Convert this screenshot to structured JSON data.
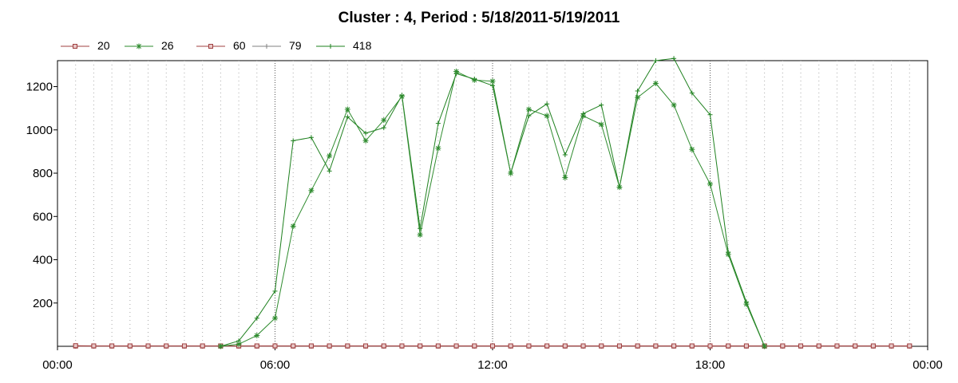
{
  "title": "Cluster : 4, Period : 5/18/2011-5/19/2011",
  "chart_data": {
    "type": "line",
    "title": "Cluster : 4, Period : 5/18/2011-5/19/2011",
    "xlabel": "",
    "ylabel": "",
    "x_range_hours": [
      0,
      24
    ],
    "ylim": [
      0,
      1320
    ],
    "x_tick_labels": [
      "00:00",
      "06:00",
      "12:00",
      "18:00",
      "00:00"
    ],
    "y_ticks": [
      200,
      400,
      600,
      800,
      1000,
      1200
    ],
    "grid": "dotted vertical lines every 30 minutes, bold at each hour",
    "legend_position": "top-left",
    "x_unit": "hours since 5/18/2011 00:00",
    "series": [
      {
        "name": "20",
        "color": "#a04040",
        "marker": "square",
        "x": [
          0.5,
          1,
          1.5,
          2,
          2.5,
          3,
          3.5,
          4,
          4.5,
          5,
          5.5,
          6,
          6.5,
          7,
          7.5,
          8,
          8.5,
          9,
          9.5,
          10,
          10.5,
          11,
          11.5,
          12,
          12.5,
          13,
          13.5,
          14,
          14.5,
          15,
          15.5,
          16,
          16.5,
          17,
          17.5,
          18,
          18.5,
          19,
          19.5,
          20,
          20.5,
          21,
          21.5,
          22,
          22.5,
          23,
          23.5
        ],
        "y": [
          3,
          2,
          2,
          2,
          2,
          2,
          2,
          2,
          2,
          2,
          2,
          2,
          2,
          2,
          2,
          2,
          2,
          2,
          2,
          2,
          2,
          2,
          2,
          2,
          2,
          2,
          2,
          2,
          2,
          2,
          2,
          2,
          2,
          2,
          2,
          2,
          2,
          2,
          2,
          2,
          2,
          2,
          2,
          2,
          2,
          2,
          2
        ]
      },
      {
        "name": "26",
        "color": "#2e8b2e",
        "marker": "asterisk",
        "x": [
          4.5,
          5,
          5.5,
          6,
          6.5,
          7,
          7.5,
          8,
          8.5,
          9,
          9.5,
          10,
          10.5,
          11,
          11.5,
          12,
          12.5,
          13,
          13.5,
          14,
          14.5,
          15,
          15.5,
          16,
          16.5,
          17,
          17.5,
          18,
          18.5,
          19,
          19.5
        ],
        "y": [
          0,
          10,
          50,
          130,
          555,
          720,
          880,
          1095,
          950,
          1045,
          1155,
          515,
          915,
          1270,
          1230,
          1225,
          800,
          1095,
          1065,
          780,
          1065,
          1025,
          735,
          1150,
          1215,
          1115,
          910,
          750,
          425,
          195,
          0
        ]
      },
      {
        "name": "60",
        "color": "#a04040",
        "marker": "square",
        "x": [
          0.5,
          1,
          1.5,
          2,
          2.5,
          3,
          3.5,
          4,
          4.5,
          5,
          5.5,
          6,
          6.5,
          7,
          7.5,
          8,
          8.5,
          9,
          9.5,
          10,
          10.5,
          11,
          11.5,
          12,
          12.5,
          13,
          13.5,
          14,
          14.5,
          15,
          15.5,
          16,
          16.5,
          17,
          17.5,
          18,
          18.5,
          19,
          19.5,
          20,
          20.5,
          21,
          21.5,
          22,
          22.5,
          23,
          23.5
        ],
        "y": [
          1,
          1,
          1,
          1,
          1,
          1,
          1,
          1,
          1,
          1,
          1,
          1,
          1,
          1,
          1,
          1,
          1,
          1,
          1,
          1,
          1,
          1,
          1,
          1,
          1,
          1,
          1,
          1,
          1,
          1,
          1,
          1,
          1,
          1,
          1,
          1,
          1,
          1,
          1,
          1,
          1,
          1,
          1,
          1,
          1,
          1,
          1
        ]
      },
      {
        "name": "79",
        "color": "#808080",
        "marker": "plus",
        "x": [
          0.5,
          1,
          1.5,
          2,
          2.5,
          3,
          3.5,
          4,
          4.5,
          5,
          5.5,
          6,
          6.5,
          7,
          7.5,
          8,
          8.5,
          9,
          9.5,
          10,
          10.5,
          11,
          11.5,
          12,
          12.5,
          13,
          13.5,
          14,
          14.5,
          15,
          15.5,
          16,
          16.5,
          17,
          17.5,
          18,
          18.5,
          19,
          19.5,
          20,
          20.5,
          21,
          21.5,
          22,
          22.5,
          23,
          23.5
        ],
        "y": [
          0,
          0,
          0,
          0,
          0,
          0,
          0,
          0,
          0,
          0,
          0,
          0,
          0,
          0,
          0,
          0,
          0,
          0,
          0,
          0,
          0,
          0,
          0,
          0,
          0,
          0,
          0,
          0,
          0,
          0,
          0,
          0,
          0,
          0,
          0,
          0,
          0,
          0,
          0,
          0,
          0,
          0,
          0,
          0,
          0,
          0,
          0
        ]
      },
      {
        "name": "418",
        "color": "#1e801e",
        "marker": "plus",
        "x": [
          4.5,
          5,
          5.5,
          6,
          6.5,
          7,
          7.5,
          8,
          8.5,
          9,
          9.5,
          10,
          10.5,
          11,
          11.5,
          12,
          12.5,
          13,
          13.5,
          14,
          14.5,
          15,
          15.5,
          16,
          16.5,
          17,
          17.5,
          18,
          18.5,
          19,
          19.5
        ],
        "y": [
          0,
          25,
          130,
          255,
          950,
          965,
          810,
          1060,
          985,
          1010,
          1160,
          545,
          1030,
          1260,
          1235,
          1205,
          800,
          1065,
          1120,
          885,
          1075,
          1115,
          735,
          1180,
          1320,
          1330,
          1170,
          1070,
          435,
          205,
          0
        ]
      }
    ]
  }
}
